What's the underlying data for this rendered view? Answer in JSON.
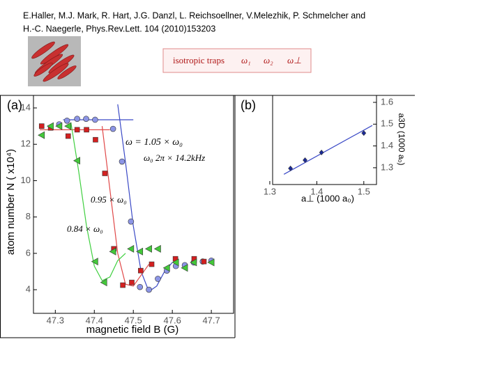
{
  "citation": [
    "E.Haller, M.J. Mark, R. Hart, J.G. Danzl, L. Reichsoellner, V.Melezhik, P. Schmelcher and",
    "H.-C. Naegerle, Phys.Rev.Lett. 104 (2010)153203"
  ],
  "trap_box": {
    "label": "isotropic traps",
    "symbols": [
      "ω₁",
      "ω₂",
      "ω⊥"
    ]
  },
  "chart_data": [
    {
      "type": "scatter",
      "panel_label": "(a)",
      "x_label": "magnetic field B (G)",
      "y_label": "atom number N ( x10⁴)",
      "xlim": [
        47.244,
        47.757
      ],
      "ylim": [
        2.7,
        14.69
      ],
      "xticks": [
        47.3,
        47.4,
        47.5,
        47.6,
        47.7
      ],
      "yticks": [
        4,
        6,
        8,
        10,
        12,
        14
      ],
      "annotations": [
        "ω  = 1.05 × ω₀",
        "ω₀   2π × 14.2kHz",
        "0.95 × ω₀",
        "0.84 × ω₀"
      ],
      "series": [
        {
          "color": "#3a49c6",
          "style": "line",
          "x": [
            47.32,
            47.5
          ],
          "values": [
            13.35,
            13.35
          ]
        },
        {
          "color": "#e04848",
          "style": "line",
          "x": [
            47.26,
            47.44
          ],
          "values": [
            12.8,
            12.8
          ]
        },
        {
          "color": "#3a49c6",
          "style": "line",
          "x": [
            47.46,
            47.48,
            47.5,
            47.52,
            47.54,
            47.56,
            47.58,
            47.6
          ],
          "values": [
            14.2,
            11.0,
            7.5,
            5.0,
            3.9,
            4.2,
            5.0,
            5.5
          ]
        },
        {
          "color": "#e04848",
          "style": "line",
          "x": [
            47.42,
            47.44,
            47.46,
            47.48,
            47.5,
            47.52,
            47.54
          ],
          "values": [
            13.0,
            9.5,
            6.0,
            4.3,
            4.2,
            4.8,
            5.4
          ]
        },
        {
          "color": "#3fcf3f",
          "style": "line",
          "x": [
            47.34,
            47.36,
            47.38,
            47.4,
            47.42,
            47.44,
            47.46,
            47.48
          ],
          "values": [
            13.2,
            10.5,
            7.5,
            5.3,
            4.5,
            4.7,
            5.6,
            6.0
          ]
        },
        {
          "color": "#8c95e6",
          "style": "marker",
          "marker": "circle",
          "x": [
            47.31,
            47.33,
            47.356,
            47.379,
            47.402,
            47.448,
            47.471,
            47.494,
            47.517,
            47.54,
            47.563,
            47.586,
            47.609,
            47.632,
            47.655,
            47.678,
            47.7
          ],
          "values": [
            13.1,
            13.3,
            13.4,
            13.4,
            13.35,
            12.85,
            11.05,
            7.75,
            4.15,
            4.0,
            4.6,
            5.05,
            5.3,
            5.35,
            5.5,
            5.55,
            5.6
          ]
        },
        {
          "color": "#d42020",
          "style": "marker",
          "marker": "square",
          "x": [
            47.265,
            47.288,
            47.333,
            47.356,
            47.38,
            47.403,
            47.427,
            47.45,
            47.473,
            47.496,
            47.519,
            47.547,
            47.608,
            47.656,
            47.681
          ],
          "values": [
            13.0,
            12.9,
            12.45,
            12.8,
            12.8,
            12.25,
            10.4,
            6.25,
            4.25,
            4.4,
            5.05,
            5.4,
            5.7,
            5.7,
            5.55
          ]
        },
        {
          "color": "#44c83a",
          "style": "marker",
          "marker": "triangle",
          "x": [
            47.265,
            47.288,
            47.31,
            47.333,
            47.356,
            47.402,
            47.425,
            47.448,
            47.494,
            47.517,
            47.54,
            47.563,
            47.586,
            47.609,
            47.632,
            47.655,
            47.7
          ],
          "values": [
            12.5,
            13.0,
            13.0,
            13.0,
            11.1,
            5.55,
            4.4,
            6.1,
            6.25,
            6.1,
            6.25,
            6.25,
            5.2,
            5.5,
            5.2,
            5.5,
            5.5
          ]
        }
      ]
    },
    {
      "type": "scatter",
      "panel_label": "(b)",
      "x_label": "a⊥ (1000 a₀)",
      "y_label": "a3D (1000 a₀)",
      "xlim": [
        1.306,
        1.527
      ],
      "ylim": [
        1.223,
        1.632
      ],
      "xticks": [
        1.3,
        1.4,
        1.5
      ],
      "yticks": [
        1.3,
        1.4,
        1.5,
        1.6
      ],
      "series": [
        {
          "color": "#3a49c6",
          "style": "line",
          "x": [
            1.33,
            1.518
          ],
          "values": [
            1.27,
            1.494
          ]
        },
        {
          "color": "#1a2a9a",
          "style": "marker",
          "marker": "diamond",
          "x": [
            1.344,
            1.375,
            1.41,
            1.5
          ],
          "values": [
            1.297,
            1.335,
            1.37,
            1.459
          ]
        }
      ]
    }
  ]
}
